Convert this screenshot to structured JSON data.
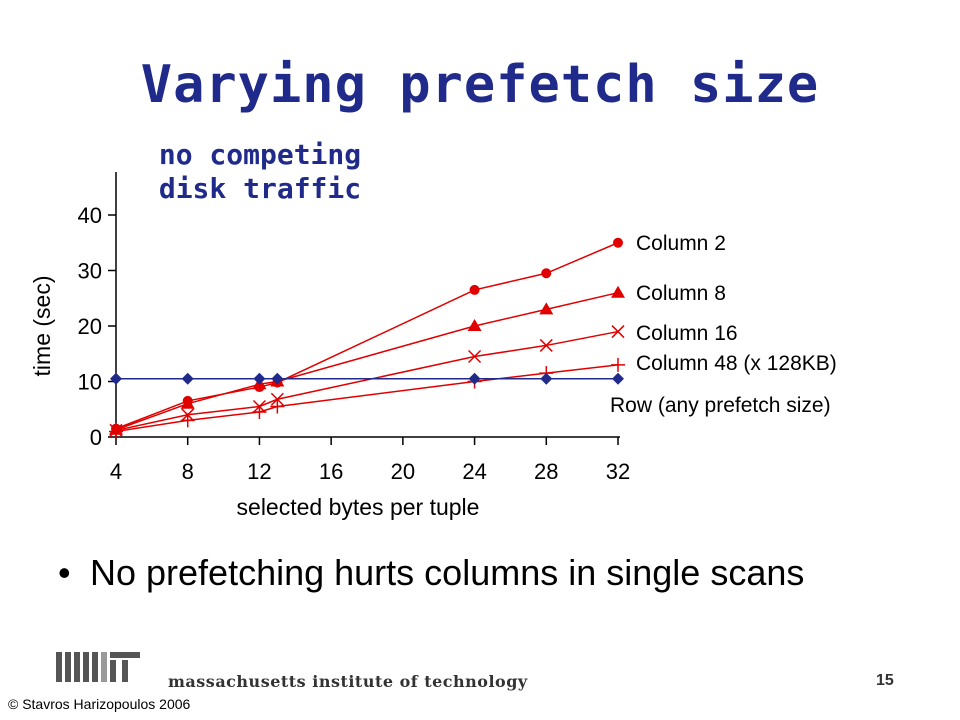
{
  "slide": {
    "title": "Varying prefetch size",
    "subtitle_lines": [
      "no competing",
      "disk traffic"
    ],
    "bullet": "No prefetching hurts columns in single scans",
    "footer_text": "massachusetts institute of technology",
    "page_number": "15",
    "copyright": "© Stavros Harizopoulos 2006",
    "logo_icon": "mit-logo-icon"
  },
  "colors": {
    "title": "#1f2a8a",
    "column_series": "#e00000",
    "row_series": "#1f2a8a",
    "axis": "#000000"
  },
  "chart_data": {
    "type": "line",
    "title": "",
    "xlabel": "selected bytes per tuple",
    "ylabel": "time (sec)",
    "xlim": [
      4,
      32
    ],
    "ylim": [
      0,
      40
    ],
    "x_ticks": [
      4,
      8,
      12,
      16,
      20,
      24,
      28,
      32
    ],
    "y_ticks": [
      0,
      10,
      20,
      30,
      40
    ],
    "grid": false,
    "legend": "right",
    "series": [
      {
        "name": "Column 2",
        "marker": "circle",
        "color": "#e00000",
        "x": [
          4,
          8,
          12,
          13,
          24,
          28,
          32
        ],
        "y": [
          1.5,
          6.5,
          9.0,
          9.8,
          26.5,
          29.5,
          35.0
        ]
      },
      {
        "name": "Column 8",
        "marker": "triangle",
        "color": "#e00000",
        "x": [
          4,
          8,
          12,
          13,
          24,
          28,
          32
        ],
        "y": [
          1.3,
          6.0,
          9.5,
          10.0,
          20.0,
          23.0,
          26.0
        ]
      },
      {
        "name": "Column 16",
        "marker": "x",
        "color": "#e00000",
        "x": [
          4,
          8,
          12,
          13,
          24,
          28,
          32
        ],
        "y": [
          1.2,
          4.0,
          5.5,
          6.8,
          14.5,
          16.5,
          19.0
        ]
      },
      {
        "name": "Column 48 (x 128KB)",
        "marker": "plus",
        "color": "#e00000",
        "x": [
          4,
          8,
          12,
          13,
          24,
          28,
          32
        ],
        "y": [
          1.0,
          3.0,
          4.5,
          5.5,
          10.0,
          11.5,
          13.0
        ]
      },
      {
        "name": "Row (any prefetch size)",
        "marker": "diamond",
        "color": "#1f2a8a",
        "x": [
          4,
          8,
          12,
          13,
          24,
          28,
          32
        ],
        "y": [
          10.5,
          10.5,
          10.5,
          10.5,
          10.5,
          10.5,
          10.5
        ]
      }
    ]
  }
}
